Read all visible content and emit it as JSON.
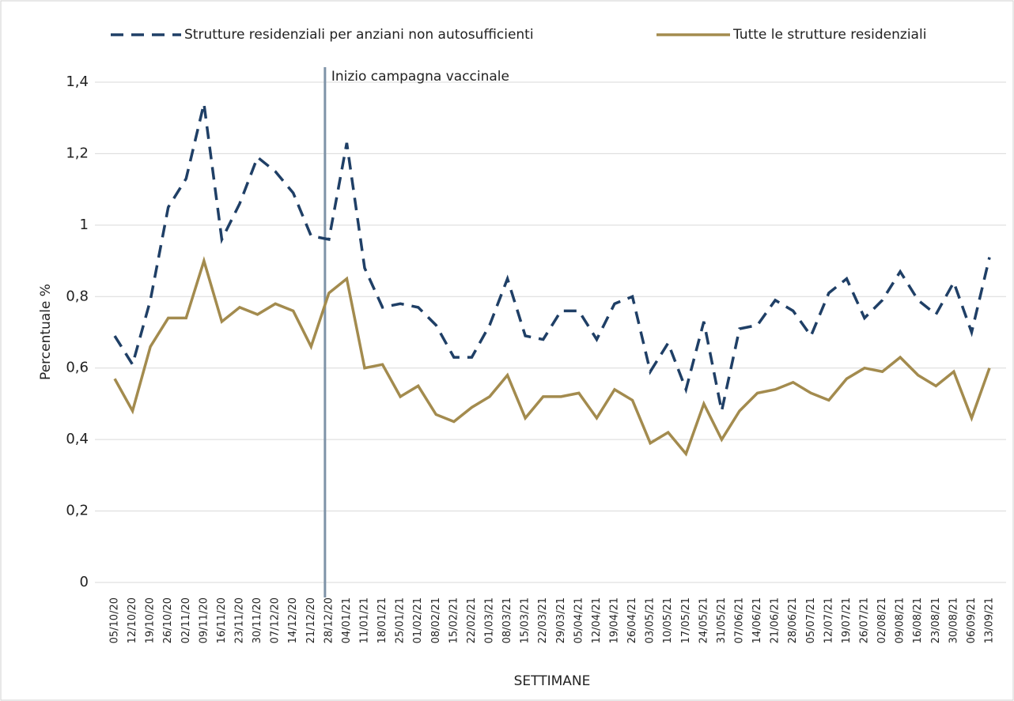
{
  "chart_data": {
    "type": "line",
    "x_label": "SETTIMANE",
    "y_label": "Percentuale %",
    "categories": [
      "05/10/20",
      "12/10/20",
      "19/10/20",
      "26/10/20",
      "02/11/20",
      "09/11/20",
      "16/11/20",
      "23/11/20",
      "30/11/20",
      "07/12/20",
      "14/12/20",
      "21/12/20",
      "28/12/20",
      "04/01/21",
      "11/01/21",
      "18/01/21",
      "25/01/21",
      "01/02/21",
      "08/02/21",
      "15/02/21",
      "22/02/21",
      "01/03/21",
      "08/03/21",
      "15/03/21",
      "22/03/21",
      "29/03/21",
      "05/04/21",
      "12/04/21",
      "19/04/21",
      "26/04/21",
      "03/05/21",
      "10/05/21",
      "17/05/21",
      "24/05/21",
      "31/05/21",
      "07/06/21",
      "14/06/21",
      "21/06/21",
      "28/06/21",
      "05/07/21",
      "12/07/21",
      "19/07/21",
      "26/07/21",
      "02/08/21",
      "09/08/21",
      "16/08/21",
      "23/08/21",
      "30/08/21",
      "06/09/21",
      "13/09/21"
    ],
    "series": [
      {
        "name": "Strutture residenziali per anziani non autosufficienti",
        "color": "#1f3f66",
        "dash": true,
        "values": [
          0.69,
          0.61,
          0.79,
          1.05,
          1.13,
          1.34,
          0.96,
          1.06,
          1.19,
          1.15,
          1.09,
          0.97,
          0.96,
          1.23,
          0.88,
          0.77,
          0.78,
          0.77,
          0.72,
          0.63,
          0.63,
          0.72,
          0.85,
          0.69,
          0.68,
          0.76,
          0.76,
          0.68,
          0.78,
          0.8,
          0.59,
          0.67,
          0.54,
          0.73,
          0.48,
          0.71,
          0.72,
          0.79,
          0.76,
          0.69,
          0.81,
          0.85,
          0.74,
          0.79,
          0.87,
          0.79,
          0.75,
          0.84,
          0.7,
          0.91
        ]
      },
      {
        "name": "Tutte le strutture residenziali",
        "color": "#a38b4e",
        "dash": false,
        "values": [
          0.57,
          0.48,
          0.66,
          0.74,
          0.74,
          0.9,
          0.73,
          0.77,
          0.75,
          0.78,
          0.76,
          0.66,
          0.81,
          0.85,
          0.6,
          0.61,
          0.52,
          0.55,
          0.47,
          0.45,
          0.49,
          0.52,
          0.58,
          0.46,
          0.52,
          0.52,
          0.53,
          0.46,
          0.54,
          0.51,
          0.39,
          0.42,
          0.36,
          0.5,
          0.4,
          0.48,
          0.53,
          0.54,
          0.56,
          0.53,
          0.51,
          0.57,
          0.6,
          0.59,
          0.63,
          0.58,
          0.55,
          0.59,
          0.46,
          0.6
        ]
      }
    ],
    "ylim": [
      0,
      1.4
    ],
    "yticks": [
      0,
      {
        "value": 0.2,
        "label": "0,2"
      },
      {
        "value": 0.4,
        "label": "0,4"
      },
      {
        "value": 0.6,
        "label": "0,6"
      },
      {
        "value": 0.8,
        "label": "0,8"
      },
      1,
      {
        "value": 1.2,
        "label": "1,2"
      },
      {
        "value": 1.4,
        "label": "1,4"
      }
    ],
    "grid": true,
    "annotation": {
      "text": "Inizio campagna vaccinale",
      "x": "28/12/20",
      "color": "#7f93a8"
    }
  }
}
